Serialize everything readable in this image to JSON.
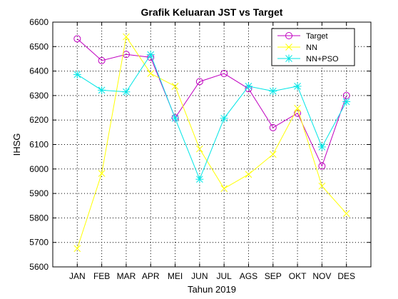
{
  "chart_data": {
    "type": "line",
    "title": "Grafik Keluaran JST vs Target",
    "xlabel": "Tahun 2019",
    "ylabel": "IHSG",
    "categories": [
      "JAN",
      "FEB",
      "MAR",
      "APR",
      "MEI",
      "JUN",
      "JUL",
      "AGS",
      "SEP",
      "OKT",
      "NOV",
      "DES"
    ],
    "ylim": [
      5600,
      6600
    ],
    "yticks": [
      5600,
      5700,
      5800,
      5900,
      6000,
      6100,
      6200,
      6300,
      6400,
      6500,
      6600
    ],
    "grid": true,
    "legend_position": "top-right",
    "series": [
      {
        "name": "Target",
        "color": "#c000c0",
        "marker": "circle",
        "values": [
          6532,
          6443,
          6468,
          6456,
          6209,
          6357,
          6390,
          6328,
          6169,
          6228,
          6012,
          6300
        ]
      },
      {
        "name": "NN",
        "color": "#ffff00",
        "marker": "x",
        "values": [
          5675,
          5982,
          6540,
          6390,
          6338,
          6082,
          5920,
          5978,
          6060,
          6248,
          5930,
          5818
        ]
      },
      {
        "name": "NN+PSO",
        "color": "#00e6e6",
        "marker": "star",
        "values": [
          6386,
          6322,
          6315,
          6467,
          6207,
          5958,
          6207,
          6338,
          6318,
          6338,
          6090,
          6275
        ]
      }
    ]
  }
}
